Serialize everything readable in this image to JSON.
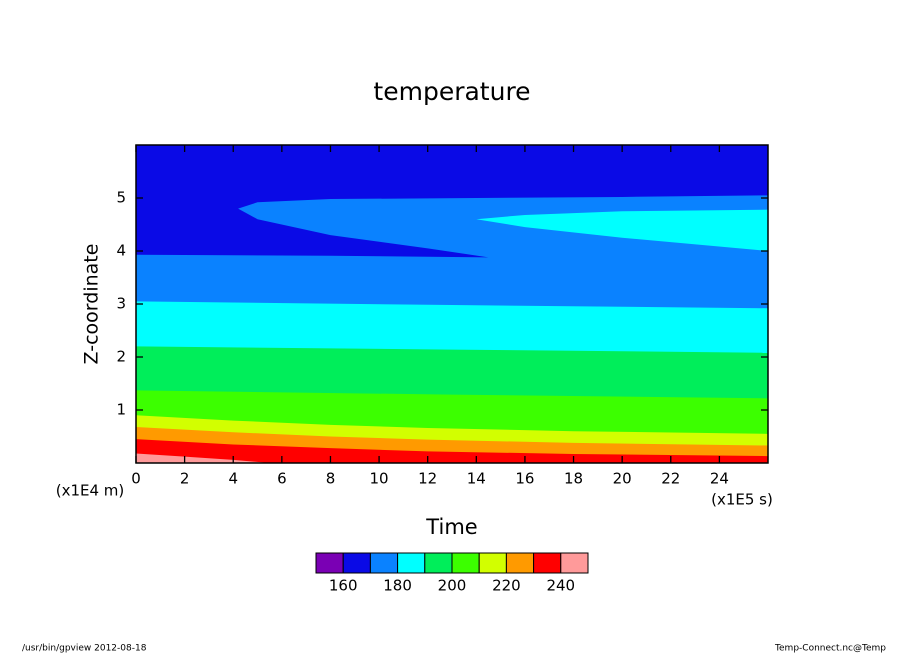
{
  "chart_data": {
    "type": "contour",
    "title": "temperature",
    "x_label": "Time",
    "y_label": "Z-coordinate",
    "x_unit": "(x1E5 s)",
    "y_unit": "(x1E4 m)",
    "xlim": [
      0,
      26
    ],
    "ylim": [
      0,
      6
    ],
    "xticks": [
      0,
      2,
      4,
      6,
      8,
      10,
      12,
      14,
      16,
      18,
      20,
      22,
      24
    ],
    "yticks": [
      1,
      2,
      3,
      4,
      5
    ],
    "levels": [
      150,
      160,
      170,
      180,
      190,
      200,
      210,
      220,
      230,
      240,
      250
    ],
    "colors": [
      "#7a00b4",
      "#0a0ae6",
      "#0a82ff",
      "#00ffff",
      "#00ee5a",
      "#3cff00",
      "#d2ff00",
      "#ff9a00",
      "#ff0000",
      "#ff9a9a"
    ],
    "colorbar_ticks": [
      160,
      180,
      200,
      220,
      240
    ],
    "contours": [
      {
        "level": 170,
        "closed": false,
        "x": [
          0,
          8,
          14.5,
          12,
          8,
          5,
          4.2,
          5,
          8,
          14,
          20,
          26
        ],
        "y": [
          3.93,
          3.91,
          3.88,
          4.05,
          4.3,
          4.6,
          4.8,
          4.92,
          4.98,
          5.0,
          5.02,
          5.05
        ]
      },
      {
        "level": 180,
        "closed": false,
        "x": [
          0,
          13,
          26
        ],
        "y": [
          3.05,
          2.98,
          2.92
        ]
      },
      {
        "level": 180,
        "closed": true,
        "x": [
          26,
          20,
          16,
          14,
          16,
          20,
          26
        ],
        "y": [
          4.0,
          4.25,
          4.45,
          4.6,
          4.68,
          4.75,
          4.78
        ]
      },
      {
        "level": 190,
        "closed": false,
        "x": [
          0,
          13,
          26
        ],
        "y": [
          2.2,
          2.14,
          2.08
        ]
      },
      {
        "level": 200,
        "closed": false,
        "x": [
          0,
          13,
          26
        ],
        "y": [
          1.37,
          1.29,
          1.22
        ]
      },
      {
        "level": 210,
        "closed": false,
        "x": [
          0,
          4,
          8,
          12,
          18,
          26
        ],
        "y": [
          0.9,
          0.8,
          0.72,
          0.66,
          0.6,
          0.55
        ]
      },
      {
        "level": 220,
        "closed": false,
        "x": [
          0,
          4,
          8,
          12,
          18,
          26
        ],
        "y": [
          0.68,
          0.58,
          0.5,
          0.44,
          0.38,
          0.33
        ]
      },
      {
        "level": 230,
        "closed": false,
        "x": [
          0,
          4,
          8,
          12,
          18,
          26
        ],
        "y": [
          0.45,
          0.35,
          0.28,
          0.22,
          0.17,
          0.13
        ]
      },
      {
        "level": 240,
        "closed": false,
        "x": [
          0,
          2,
          4,
          5.5
        ],
        "y": [
          0.18,
          0.12,
          0.06,
          0
        ]
      }
    ],
    "footer_left": "/usr/bin/gpview   2012-08-18",
    "footer_right": "Temp-Connect.nc@Temp"
  }
}
